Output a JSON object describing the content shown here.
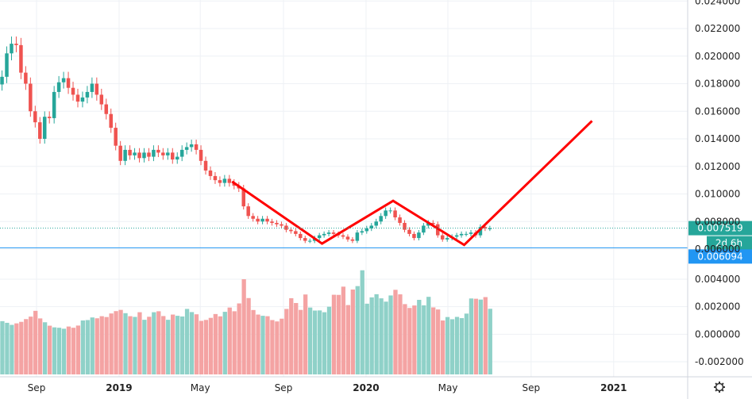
{
  "colors": {
    "up": "#26a69a",
    "down": "#ef5350",
    "vol_up": "#8fd1c8",
    "vol_down": "#f4a3a3",
    "grid": "#eef1f5",
    "pattern": "#ff0000",
    "last_price_line": "#26a69a",
    "level_line": "#2196f3"
  },
  "settings_icon": "gear-icon",
  "chart_data": {
    "type": "candlestick",
    "x_axis": {
      "labels": [
        "Sep",
        "2019",
        "May",
        "Sep",
        "2020",
        "May",
        "Sep",
        "2021"
      ],
      "bold_labels": [
        "2019",
        "2020",
        "2021"
      ],
      "start": "2018-07-09",
      "end": "2021-03-15"
    },
    "price_axis": {
      "labels": [
        "0.024000",
        "0.022000",
        "0.020000",
        "0.018000",
        "0.016000",
        "0.014000",
        "0.012000",
        "0.010000",
        "0.008000",
        "0.006000"
      ],
      "range": [
        0.006,
        0.024
      ]
    },
    "volume_axis": {
      "labels": [
        "0.004000",
        "0.002000",
        "0.000000",
        "-0.002000"
      ],
      "range": [
        -0.0025,
        0.0055
      ]
    },
    "last_price": "0.007519",
    "countdown": "2d 6h",
    "level_price": "0.006094",
    "close_series": [
      0.0185,
      0.0202,
      0.0209,
      0.0208,
      0.0188,
      0.018,
      0.016,
      0.0152,
      0.014,
      0.0156,
      0.0155,
      0.0174,
      0.0181,
      0.0184,
      0.0177,
      0.0172,
      0.0167,
      0.017,
      0.0174,
      0.018,
      0.0172,
      0.0165,
      0.0158,
      0.0148,
      0.0135,
      0.0124,
      0.0132,
      0.0128,
      0.013,
      0.0126,
      0.013,
      0.0127,
      0.0132,
      0.013,
      0.0128,
      0.013,
      0.0125,
      0.0127,
      0.0132,
      0.0134,
      0.0136,
      0.0132,
      0.0124,
      0.0117,
      0.0113,
      0.011,
      0.0108,
      0.0111,
      0.0108,
      0.0106,
      0.0104,
      0.0091,
      0.0084,
      0.0082,
      0.008,
      0.0082,
      0.008,
      0.0079,
      0.0078,
      0.0077,
      0.0074,
      0.0073,
      0.0071,
      0.0068,
      0.0066,
      0.0066,
      0.0068,
      0.007,
      0.0071,
      0.0072,
      0.0071,
      0.007,
      0.0069,
      0.0067,
      0.0066,
      0.0072,
      0.0073,
      0.0075,
      0.0077,
      0.008,
      0.0084,
      0.0088,
      0.0088,
      0.0083,
      0.0079,
      0.0074,
      0.0071,
      0.0068,
      0.0072,
      0.0077,
      0.0079,
      0.0078,
      0.007,
      0.0067,
      0.0068,
      0.0069,
      0.007,
      0.0071,
      0.0071,
      0.0072,
      0.007,
      0.0076,
      0.0075,
      0.0075
    ],
    "volume_series": [
      0.00095,
      0.00083,
      0.00068,
      0.00079,
      0.0009,
      0.0011,
      0.00128,
      0.0017,
      0.00115,
      0.00087,
      0.00062,
      0.0005,
      0.00047,
      0.0004,
      0.00056,
      0.00047,
      0.00063,
      0.001,
      0.00103,
      0.00122,
      0.00116,
      0.00131,
      0.00125,
      0.00151,
      0.00168,
      0.00177,
      0.00153,
      0.00131,
      0.00126,
      0.0016,
      0.00105,
      0.00127,
      0.0016,
      0.00167,
      0.00132,
      0.00105,
      0.00143,
      0.00134,
      0.00129,
      0.00184,
      0.00161,
      0.00145,
      0.00097,
      0.00104,
      0.00119,
      0.00147,
      0.0013,
      0.00163,
      0.00194,
      0.00167,
      0.00224,
      0.004,
      0.00263,
      0.00176,
      0.00143,
      0.00134,
      0.00131,
      0.00103,
      0.00093,
      0.00113,
      0.00184,
      0.00262,
      0.00227,
      0.00177,
      0.00289,
      0.00194,
      0.00172,
      0.00173,
      0.0016,
      0.002,
      0.00287,
      0.00286,
      0.00346,
      0.00212,
      0.00325,
      0.0035,
      0.00465,
      0.00222,
      0.00268,
      0.00291,
      0.00261,
      0.00237,
      0.00282,
      0.00323,
      0.0029,
      0.00219,
      0.00191,
      0.00209,
      0.0025,
      0.0021,
      0.00272,
      0.00195,
      0.0018,
      0.001,
      0.00125,
      0.00109,
      0.00126,
      0.00117,
      0.0015,
      0.0026,
      0.00258,
      0.00252,
      0.0027,
      0.00185
    ],
    "pattern_lines": {
      "points": [
        [
          "2019-06-17",
          0.0109
        ],
        [
          "2019-10-28",
          0.0064
        ],
        [
          "2020-02-10",
          0.0095
        ],
        [
          "2020-05-25",
          0.0063
        ],
        [
          "2020-11-30",
          0.0153
        ]
      ]
    }
  }
}
